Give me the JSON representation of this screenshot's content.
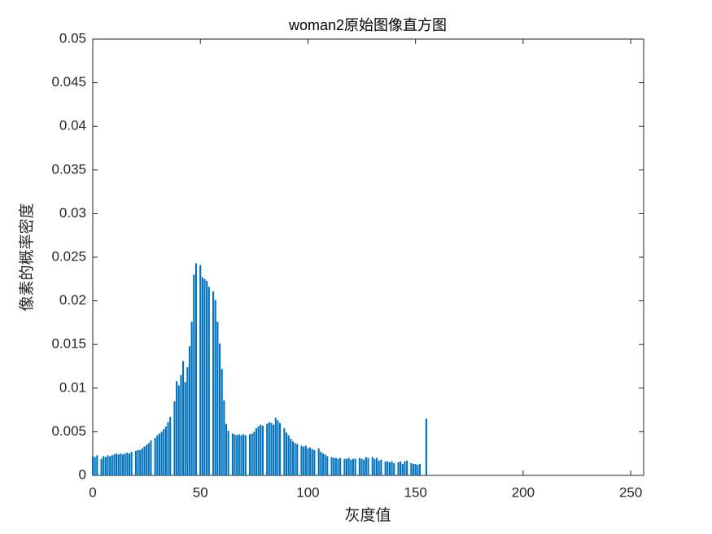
{
  "chart_data": {
    "type": "bar",
    "title": "woman2原始图像直方图",
    "xlabel": "灰度值",
    "ylabel": "像素的概率密度",
    "color": "#0072BD",
    "x": [
      0,
      1,
      2,
      3,
      4,
      5,
      6,
      7,
      8,
      9,
      10,
      11,
      12,
      13,
      14,
      15,
      16,
      17,
      18,
      19,
      20,
      21,
      22,
      23,
      24,
      25,
      26,
      27,
      28,
      29,
      30,
      31,
      32,
      33,
      34,
      35,
      36,
      37,
      38,
      39,
      40,
      41,
      42,
      43,
      44,
      45,
      46,
      47,
      48,
      49,
      50,
      51,
      52,
      53,
      54,
      55,
      56,
      57,
      58,
      59,
      60,
      61,
      62,
      63,
      64,
      65,
      66,
      67,
      68,
      69,
      70,
      71,
      72,
      73,
      74,
      75,
      76,
      77,
      78,
      79,
      80,
      81,
      82,
      83,
      84,
      85,
      86,
      87,
      88,
      89,
      90,
      91,
      92,
      93,
      94,
      95,
      96,
      97,
      98,
      99,
      100,
      101,
      102,
      103,
      104,
      105,
      106,
      107,
      108,
      109,
      110,
      111,
      112,
      113,
      114,
      115,
      116,
      117,
      118,
      119,
      120,
      121,
      122,
      123,
      124,
      125,
      126,
      127,
      128,
      129,
      130,
      131,
      132,
      133,
      134,
      135,
      136,
      137,
      138,
      139,
      140,
      141,
      142,
      143,
      144,
      145,
      146,
      147,
      148,
      149,
      150,
      151,
      152,
      153,
      154,
      155
    ],
    "values": [
      0.0022,
      0.0021,
      0.0023,
      0,
      0.0019,
      0.0022,
      0.0021,
      0.0023,
      0.0022,
      0.0023,
      0.0024,
      0.0025,
      0.0024,
      0.0025,
      0.0024,
      0.0025,
      0.0026,
      0.0025,
      0.0027,
      0,
      0.0028,
      0.0029,
      0.0029,
      0.0031,
      0.0033,
      0.0035,
      0.0037,
      0.004,
      0,
      0.0043,
      0.0046,
      0.0048,
      0.005,
      0.0053,
      0.0056,
      0.0061,
      0.0067,
      0,
      0.0085,
      0.0108,
      0.0103,
      0.0115,
      0.0131,
      0.0107,
      0.0124,
      0.0148,
      0.0176,
      0.023,
      0.0243,
      0,
      0.0241,
      0.0227,
      0.0225,
      0.0223,
      0.0216,
      0,
      0.0211,
      0.0201,
      0.0176,
      0.0151,
      0.0122,
      0.0086,
      0.0059,
      0.0051,
      0,
      0.0048,
      0.0047,
      0.0046,
      0.0047,
      0.0046,
      0.0047,
      0.0046,
      0,
      0.0047,
      0.0048,
      0.005,
      0.0054,
      0.0056,
      0.0058,
      0.0057,
      0,
      0.0059,
      0.0061,
      0.006,
      0.0058,
      0.0066,
      0.0063,
      0.006,
      0,
      0.0054,
      0.0049,
      0.0046,
      0.0042,
      0.0039,
      0.0037,
      0.0036,
      0,
      0.0034,
      0.0033,
      0.0034,
      0.0031,
      0.0032,
      0.003,
      0.0029,
      0,
      0.0031,
      0.0027,
      0.0025,
      0.0024,
      0.0022,
      0,
      0.0021,
      0.002,
      0.002,
      0.0019,
      0.002,
      0,
      0.0019,
      0.0019,
      0.002,
      0.0018,
      0.0019,
      0.0019,
      0,
      0.002,
      0.0019,
      0.0018,
      0.0021,
      0.002,
      0,
      0.0021,
      0.0019,
      0.002,
      0.0017,
      0.0018,
      0,
      0.0016,
      0.0016,
      0.0015,
      0.0016,
      0.0014,
      0,
      0.0015,
      0.0016,
      0.0013,
      0.0016,
      0.0017,
      0,
      0.0014,
      0.0013,
      0.0013,
      0.0012,
      0.0013,
      0,
      0,
      0.0065
    ],
    "xlim": [
      0,
      256
    ],
    "xticks": [
      0,
      50,
      100,
      150,
      200,
      250
    ],
    "ylim": [
      0,
      0.05
    ],
    "yticks": [
      0,
      0.005,
      0.01,
      0.015,
      0.02,
      0.025,
      0.03,
      0.035,
      0.04,
      0.045,
      0.05
    ]
  }
}
